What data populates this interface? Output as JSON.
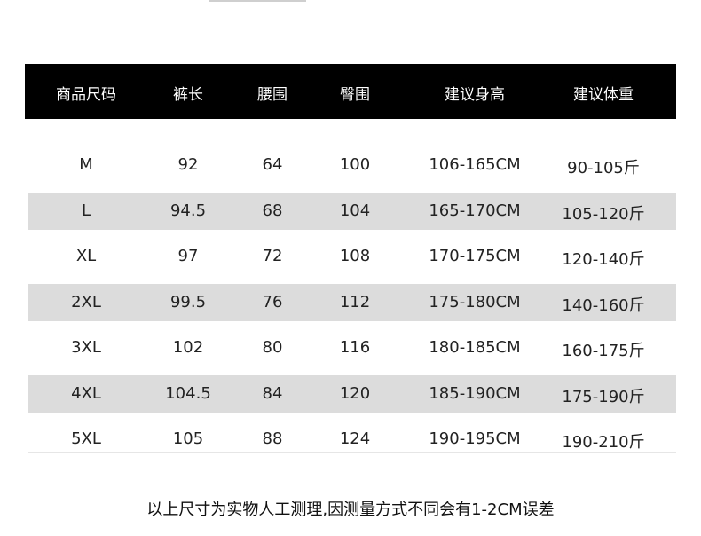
{
  "table": {
    "headers": [
      "商品尺码",
      "裤长",
      "腰围",
      "臀围",
      "建议身高",
      "建议体重"
    ],
    "rows": [
      [
        "M",
        "92",
        "64",
        "100",
        "106-165CM",
        "90-105斤"
      ],
      [
        "L",
        "94.5",
        "68",
        "104",
        "165-170CM",
        "105-120斤"
      ],
      [
        "XL",
        "97",
        "72",
        "108",
        "170-175CM",
        "120-140斤"
      ],
      [
        "2XL",
        "99.5",
        "76",
        "112",
        "175-180CM",
        "140-160斤"
      ],
      [
        "3XL",
        "102",
        "80",
        "116",
        "180-185CM",
        "160-175斤"
      ],
      [
        "4XL",
        "104.5",
        "84",
        "120",
        "185-190CM",
        "175-190斤"
      ],
      [
        "5XL",
        "105",
        "88",
        "124",
        "190-195CM",
        "190-210斤"
      ]
    ]
  },
  "note": "以上尺寸为实物人工测理,因测量方式不同会有1-2CM误差",
  "colors": {
    "header_bg": "#000000",
    "stripe": "#dcdcdc"
  }
}
